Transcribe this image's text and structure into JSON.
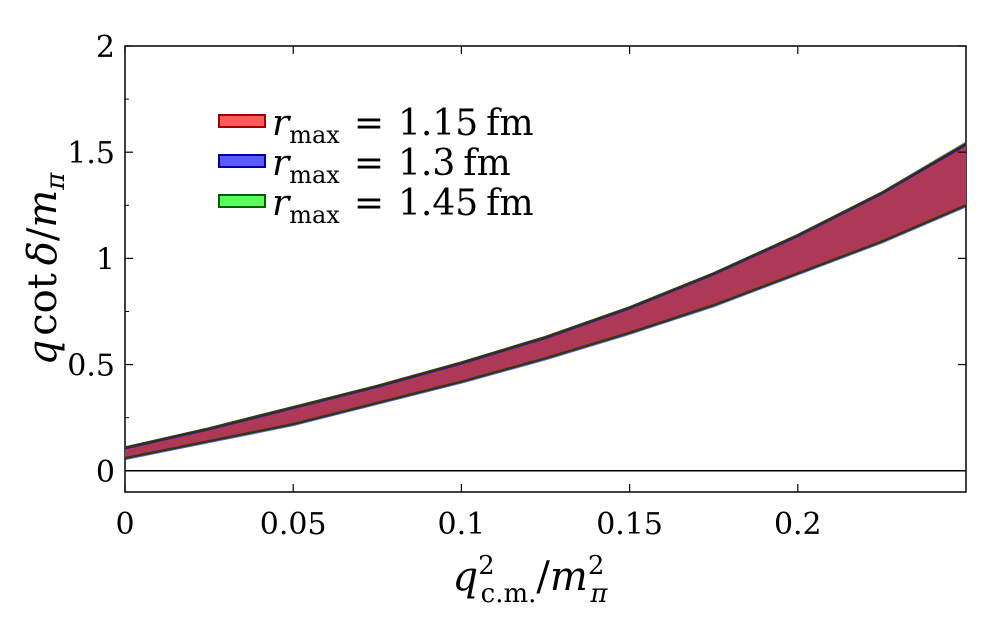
{
  "chart_data": {
    "type": "area",
    "xlabel": {
      "base": "q",
      "sup": "2",
      "sub": "c.m.",
      "slash": "/",
      "denom_base": "m",
      "denom_sup": "2",
      "denom_sub": "π"
    },
    "ylabel": {
      "prefix": "q",
      "func": "cot",
      "var": "δ",
      "slash": "/",
      "denom_base": "m",
      "denom_sub": "π"
    },
    "xlim": [
      0,
      0.25
    ],
    "ylim": [
      -0.1,
      2.0
    ],
    "xticks": [
      0,
      0.05,
      0.1,
      0.15,
      0.2
    ],
    "xtick_labels": [
      "0",
      "0.05",
      "0.1",
      "0.15",
      "0.2"
    ],
    "yticks": [
      0,
      0.5,
      1,
      1.5,
      2
    ],
    "ytick_labels": [
      "0",
      "0.5",
      "1",
      "1.5",
      "2"
    ],
    "zero_line": true,
    "legend_position": "upper-left",
    "series": [
      {
        "name": {
          "var": "r",
          "sub": "max",
          "eq": "=",
          "value": "1.15",
          "unit": "fm"
        },
        "color": "#ff5a5a",
        "edge": "#a00000",
        "x": [
          0,
          0.025,
          0.05,
          0.075,
          0.1,
          0.125,
          0.15,
          0.175,
          0.2,
          0.225,
          0.25
        ],
        "upper": [
          0.11,
          0.2,
          0.3,
          0.4,
          0.51,
          0.63,
          0.77,
          0.93,
          1.11,
          1.31,
          1.54
        ],
        "lower": [
          0.06,
          0.14,
          0.22,
          0.32,
          0.42,
          0.53,
          0.65,
          0.78,
          0.93,
          1.08,
          1.25
        ]
      },
      {
        "name": {
          "var": "r",
          "sub": "max",
          "eq": "=",
          "value": "1.3",
          "unit": "fm"
        },
        "color": "#5a5aff",
        "edge": "#0000a0",
        "x": [
          0,
          0.025,
          0.05,
          0.075,
          0.1,
          0.125,
          0.15,
          0.175,
          0.2,
          0.225,
          0.25
        ],
        "upper": [
          0.105,
          0.195,
          0.295,
          0.395,
          0.505,
          0.625,
          0.765,
          0.925,
          1.105,
          1.305,
          1.535
        ],
        "lower": [
          0.055,
          0.135,
          0.215,
          0.315,
          0.415,
          0.525,
          0.645,
          0.775,
          0.925,
          1.075,
          1.245
        ]
      },
      {
        "name": {
          "var": "r",
          "sub": "max",
          "eq": "=",
          "value": "1.45",
          "unit": "fm"
        },
        "color": "#5aff5a",
        "edge": "#006000",
        "x": [
          0,
          0.025,
          0.05,
          0.075,
          0.1,
          0.125,
          0.15,
          0.175,
          0.2,
          0.225,
          0.25
        ],
        "upper": [
          0.11,
          0.2,
          0.3,
          0.4,
          0.51,
          0.63,
          0.77,
          0.93,
          1.11,
          1.31,
          1.545
        ],
        "lower": [
          0.06,
          0.14,
          0.22,
          0.32,
          0.42,
          0.53,
          0.65,
          0.78,
          0.93,
          1.08,
          1.25
        ]
      }
    ],
    "overlap_fill_color": "#b0294f"
  }
}
